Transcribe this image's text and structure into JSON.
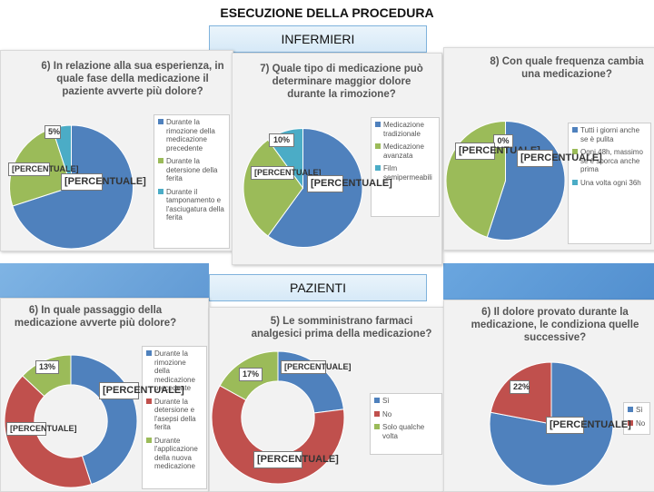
{
  "title": "ESECUZIONE DELLA PROCEDURA",
  "band_top": "INFERMIERI",
  "band_bottom": "PAZIENTI",
  "colors": {
    "blue": "#4f81bd",
    "green": "#9bbb59",
    "red": "#c0504d",
    "cyan": "#4bacc6"
  },
  "chart_data": [
    {
      "type": "pie",
      "group": "INFERMIERI",
      "title": "6) In relazione alla sua esperienza, in quale fase della medicazione il paziente avverte più dolore?",
      "categories": [
        "Durante la rimozione della medicazione precedente",
        "Durante la detersione della ferita",
        "Durante il tamponamento e l'asciugatura della ferita"
      ],
      "values": [
        70,
        25,
        5
      ],
      "data_labels": [
        "[PERCENTUALE]",
        "[PERCENTUALE]",
        "5%"
      ],
      "legend": "right"
    },
    {
      "type": "pie",
      "group": "INFERMIERI",
      "title": "7) Quale tipo di medicazione può determinare maggior dolore durante la rimozione?",
      "categories": [
        "Medicazione tradizionale",
        "Medicazione avanzata",
        "Film semipermeabili"
      ],
      "values": [
        60,
        30,
        10
      ],
      "data_labels": [
        "[PERCENTUALE]",
        "[PERCENTUALE]",
        "10%"
      ],
      "legend": "right"
    },
    {
      "type": "pie",
      "group": "INFERMIERI",
      "title": "8) Con quale frequenza cambia una medicazione?",
      "categories": [
        "Tutti i giorni anche se è pulita",
        "Ogni 48h, massimo se è sporca anche prima",
        "Una volta ogni 36h"
      ],
      "values": [
        55,
        45,
        0
      ],
      "data_labels": [
        "[PERCENTUALE]",
        "[PERCENTUALE]",
        "0%"
      ],
      "legend": "right"
    },
    {
      "type": "donut",
      "group": "PAZIENTI",
      "title": "6) In quale passaggio della medicazione avverte più dolore?",
      "categories": [
        "Durante la rimozione della medicazione precedente",
        "Durante la detersione e l'asepsi della ferita",
        "Durante l'applicazione della nuova medicazione"
      ],
      "values": [
        45,
        42,
        13
      ],
      "data_labels": [
        "[PERCENTUALE]",
        "[PERCENTUALE]",
        "13%"
      ],
      "legend": "right"
    },
    {
      "type": "donut",
      "group": "PAZIENTI",
      "title": "5) Le somministrano farmaci analgesici prima della medicazione?",
      "categories": [
        "Sì",
        "No",
        "Solo qualche volta"
      ],
      "values": [
        23,
        60,
        17
      ],
      "data_labels": [
        "[PERCENTUALE]",
        "[PERCENTUALE]",
        "17%"
      ],
      "legend": "right"
    },
    {
      "type": "pie",
      "group": "PAZIENTI",
      "title": "6) Il dolore provato durante la medicazione, le condiziona quelle successive?",
      "categories": [
        "Sì",
        "No"
      ],
      "values": [
        78,
        22
      ],
      "data_labels": [
        "[PERCENTUALE]",
        "22%"
      ],
      "legend": "right"
    }
  ]
}
